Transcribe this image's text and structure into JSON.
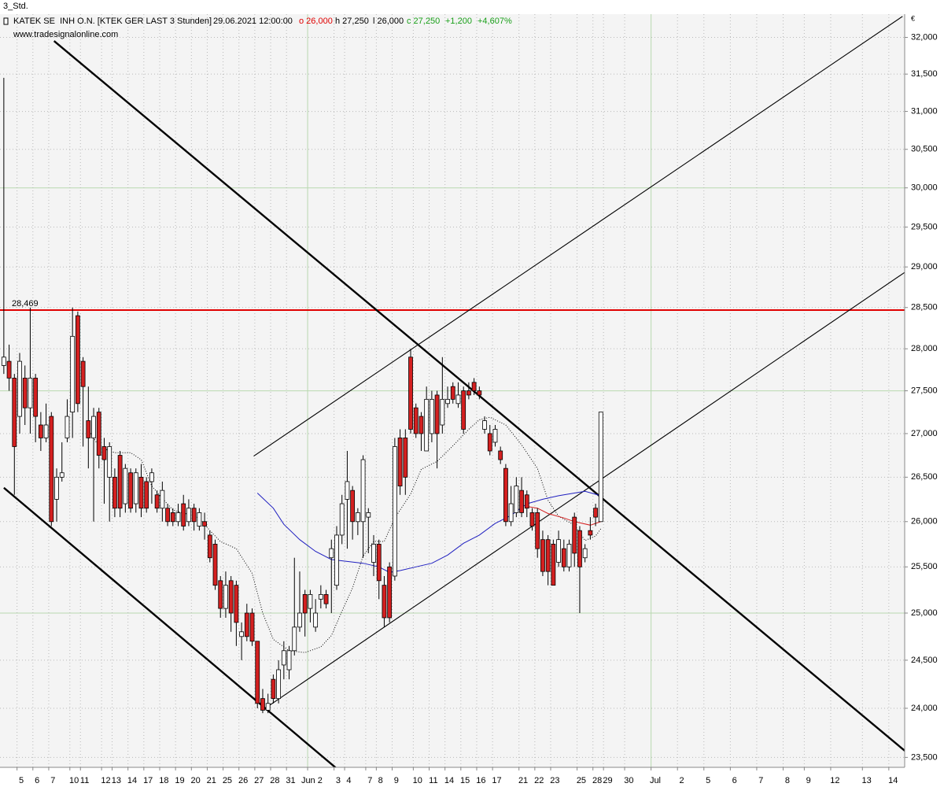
{
  "header": {
    "timeframe": "3_Std.",
    "instrument": "KATEK SE  INH O.N. [KTEK GER LAST 3 Stunden]",
    "datetime": "29.06.2021 12:00:00",
    "open": "o 26,000",
    "high": "h 27,250",
    "low": "l 26,000",
    "close": "c 27,250",
    "change": "+1,200",
    "change_pct": "+4,607%",
    "source": "www.tradesignalonline.com",
    "currency": "€"
  },
  "chart_data": {
    "type": "candlestick",
    "log": true,
    "grid": true,
    "up_color": "#ffffff",
    "down_color": "#d42020",
    "ylim": [
      23400,
      32320
    ],
    "yticks": [
      {
        "value": 23500,
        "label": "23,500"
      },
      {
        "value": 24000,
        "label": "24,000"
      },
      {
        "value": 24500,
        "label": "24,500"
      },
      {
        "value": 25000,
        "label": "25,000"
      },
      {
        "value": 25500,
        "label": "25,500"
      },
      {
        "value": 26000,
        "label": "26,000"
      },
      {
        "value": 26500,
        "label": "26,500"
      },
      {
        "value": 27000,
        "label": "27,000"
      },
      {
        "value": 27500,
        "label": "27,500"
      },
      {
        "value": 28000,
        "label": "28,000"
      },
      {
        "value": 28500,
        "label": "28,500"
      },
      {
        "value": 29000,
        "label": "29,000"
      },
      {
        "value": 29500,
        "label": "29,500"
      },
      {
        "value": 30000,
        "label": "30,000"
      },
      {
        "value": 30500,
        "label": "30,500"
      },
      {
        "value": 31000,
        "label": "31,000"
      },
      {
        "value": 31500,
        "label": "31,500"
      },
      {
        "value": 32000,
        "label": "32,000"
      }
    ],
    "major_yticks": [
      25000,
      27500,
      30000
    ],
    "categories": [
      null,
      null,
      null,
      "5",
      null,
      null,
      "6",
      null,
      null,
      "7",
      null,
      null,
      null,
      "10",
      null,
      "11",
      null,
      null,
      null,
      "12",
      null,
      "13",
      null,
      null,
      "14",
      null,
      null,
      "17",
      null,
      null,
      "18",
      null,
      null,
      "19",
      null,
      null,
      "20",
      null,
      null,
      "21",
      null,
      null,
      "25",
      null,
      null,
      "26",
      null,
      null,
      "27",
      null,
      null,
      "28",
      null,
      null,
      "31",
      null,
      null,
      null,
      "Jun 2",
      null,
      null,
      null,
      null,
      "3",
      null,
      "4",
      null,
      null,
      null,
      "7",
      null,
      "8",
      null,
      null,
      "9",
      null,
      null,
      null,
      "10",
      null,
      null,
      "11",
      null,
      null,
      "14",
      null,
      null,
      "15",
      null,
      null,
      "16",
      null,
      null,
      "17",
      null,
      null,
      null,
      null,
      "21",
      null,
      null,
      "22",
      null,
      null,
      "23",
      null,
      null,
      null,
      null,
      "25",
      null,
      null,
      "28",
      null,
      "29",
      null,
      null,
      null,
      "30",
      null,
      null,
      null,
      null,
      "Jul",
      null,
      null,
      null,
      null,
      "2",
      null,
      null,
      null,
      null,
      "5",
      null,
      null,
      null,
      null,
      "6",
      null,
      null,
      null,
      null,
      "7",
      null,
      null,
      null,
      null,
      "8",
      null,
      null,
      null,
      "9",
      null,
      null,
      null,
      null,
      "12",
      null,
      null,
      null,
      null,
      null,
      "13",
      null,
      null,
      null,
      null,
      "14",
      null,
      null
    ],
    "open": [
      27800,
      27850,
      27650,
      27200,
      27650,
      27300,
      27650,
      27100,
      26950,
      27200,
      26250,
      26500,
      26950,
      27250,
      28400,
      27850,
      27150,
      26950,
      27250,
      26850,
      26500,
      26500,
      26750,
      26200,
      26550,
      26200,
      26500,
      26450,
      26450,
      26300,
      26150,
      26150,
      26100,
      26000,
      26200,
      26000,
      26150,
      25950,
      26000,
      25850,
      25750,
      25350,
      25050,
      25350,
      25300,
      24750,
      25000,
      25000,
      24700,
      24100,
      23980,
      24300,
      24100,
      24450,
      24400,
      24600,
      24850,
      25200,
      25050,
      24850,
      25150,
      25200,
      25600,
      25300,
      25850,
      26250,
      26350,
      26000,
      26000,
      26050,
      25550,
      25750,
      25300,
      25500,
      25400,
      26950,
      26950,
      27900,
      27300,
      27200,
      26800,
      27000,
      27450,
      27100,
      27350,
      27550,
      27350,
      27500,
      27500,
      27600,
      27500,
      27050,
      27000,
      26900,
      26800,
      26600,
      26000,
      26100,
      26350,
      26300,
      26100,
      26100,
      25800,
      25800,
      25750,
      25550,
      25700,
      25500,
      26050,
      25900,
      25600,
      25900,
      26150,
      26000,
      null,
      null,
      null,
      null,
      null,
      null,
      null,
      null,
      null,
      null,
      null,
      null,
      null,
      null,
      null,
      null,
      null,
      null,
      null,
      null,
      null,
      null,
      null,
      null,
      null,
      null,
      null,
      null,
      null,
      null,
      null,
      null,
      null,
      null,
      null,
      null,
      null,
      null,
      null,
      null,
      null,
      null,
      null,
      null,
      null,
      null,
      null,
      null,
      null,
      null,
      null,
      null,
      null,
      null,
      null,
      null,
      null
    ],
    "high": [
      31450,
      28050,
      27700,
      27950,
      27800,
      28500,
      27700,
      27250,
      27350,
      27250,
      26600,
      26900,
      27400,
      28500,
      28450,
      27900,
      27550,
      27300,
      27300,
      26950,
      26900,
      26600,
      26800,
      26650,
      26600,
      26600,
      26650,
      26500,
      26600,
      26350,
      26450,
      26200,
      26150,
      26200,
      26300,
      26250,
      26200,
      26150,
      26100,
      25900,
      25800,
      25400,
      25450,
      25400,
      25350,
      24900,
      25100,
      25050,
      24700,
      24200,
      24150,
      24350,
      24500,
      24700,
      24650,
      25600,
      25450,
      25250,
      25250,
      25150,
      25300,
      25250,
      25800,
      25950,
      26300,
      26800,
      26400,
      26150,
      26750,
      26150,
      25850,
      25800,
      25400,
      25550,
      26950,
      27050,
      27050,
      28000,
      27350,
      27250,
      27550,
      27500,
      27500,
      27900,
      27550,
      27600,
      27600,
      27550,
      27600,
      27650,
      27550,
      27200,
      27100,
      27100,
      26850,
      26650,
      26400,
      26500,
      26500,
      26350,
      26150,
      26150,
      25900,
      25850,
      25800,
      25900,
      25800,
      25800,
      26100,
      25950,
      25750,
      26050,
      26200,
      27250,
      null,
      null,
      null,
      null,
      null,
      null,
      null,
      null,
      null,
      null,
      null,
      null,
      null,
      null,
      null,
      null,
      null,
      null,
      null,
      null,
      null,
      null,
      null,
      null,
      null,
      null,
      null,
      null,
      null,
      null,
      null,
      null,
      null,
      null,
      null,
      null,
      null,
      null,
      null,
      null,
      null,
      null,
      null,
      null,
      null,
      null,
      null,
      null,
      null,
      null,
      null,
      null,
      null,
      null,
      null,
      null,
      null
    ],
    "low": [
      27700,
      27500,
      26300,
      27000,
      27100,
      27000,
      26900,
      26800,
      26900,
      25950,
      26000,
      26450,
      26900,
      26950,
      27250,
      26850,
      26600,
      26000,
      26600,
      26200,
      26000,
      26050,
      26050,
      26100,
      26100,
      26100,
      26050,
      26100,
      26200,
      26100,
      26000,
      25950,
      25950,
      25950,
      25900,
      25950,
      25900,
      25900,
      25800,
      25550,
      25250,
      24950,
      24950,
      24800,
      24650,
      24500,
      24700,
      24650,
      24000,
      23950,
      23950,
      24050,
      24050,
      24300,
      24300,
      24550,
      24800,
      24750,
      24900,
      24800,
      25050,
      25050,
      25000,
      25250,
      25750,
      25700,
      25800,
      25850,
      25600,
      25650,
      25400,
      25150,
      24850,
      24900,
      25350,
      26300,
      26300,
      27000,
      26950,
      26800,
      26800,
      26900,
      26600,
      27000,
      27300,
      27350,
      27300,
      27000,
      27400,
      27450,
      27400,
      27000,
      26750,
      26850,
      26650,
      25950,
      25950,
      26050,
      26050,
      26050,
      25900,
      25600,
      25400,
      25300,
      25300,
      25500,
      25450,
      25450,
      25500,
      25000,
      25550,
      25800,
      25950,
      26000,
      null,
      null,
      null,
      null,
      null,
      null,
      null,
      null,
      null,
      null,
      null,
      null,
      null,
      null,
      null,
      null,
      null,
      null,
      null,
      null,
      null,
      null,
      null,
      null,
      null,
      null,
      null,
      null,
      null,
      null,
      null,
      null,
      null,
      null,
      null,
      null,
      null,
      null,
      null,
      null,
      null,
      null,
      null,
      null,
      null,
      null,
      null,
      null,
      null,
      null,
      null,
      null,
      null,
      null,
      null,
      null,
      null
    ],
    "close": [
      27900,
      27650,
      26850,
      27850,
      27300,
      27650,
      27200,
      26950,
      27100,
      26000,
      26500,
      26550,
      27200,
      28150,
      27350,
      27550,
      26950,
      27200,
      26750,
      26700,
      26850,
      26150,
      26150,
      26600,
      26150,
      26550,
      26150,
      26150,
      26550,
      26150,
      26350,
      26000,
      26000,
      26100,
      25950,
      26150,
      26000,
      26100,
      25950,
      25600,
      25300,
      25050,
      25300,
      25000,
      24900,
      24800,
      24750,
      24700,
      24050,
      23980,
      24050,
      24100,
      24400,
      24600,
      24600,
      24850,
      25000,
      25000,
      25200,
      25000,
      25200,
      25100,
      25700,
      25850,
      26200,
      26450,
      26000,
      26100,
      26700,
      26100,
      25750,
      25350,
      24950,
      24950,
      26850,
      26400,
      26500,
      27050,
      27000,
      27000,
      27400,
      27400,
      27000,
      27400,
      27400,
      27400,
      27450,
      27050,
      27450,
      27500,
      27450,
      27150,
      26800,
      27050,
      26700,
      26000,
      26200,
      26400,
      26100,
      26150,
      25950,
      25700,
      25450,
      25450,
      25300,
      25800,
      25500,
      25750,
      25650,
      25500,
      25700,
      25850,
      26050,
      27250,
      null,
      null,
      null,
      null,
      null,
      null,
      null,
      null,
      null,
      null,
      null,
      null,
      null,
      null,
      null,
      null,
      null,
      null,
      null,
      null,
      null,
      null,
      null,
      null,
      null,
      null,
      null,
      null,
      null,
      null,
      null,
      null,
      null,
      null,
      null,
      null,
      null,
      null,
      null,
      null,
      null,
      null,
      null,
      null,
      null,
      null,
      null,
      null,
      null,
      null,
      null,
      null,
      null,
      null,
      null,
      null,
      null
    ],
    "hline": {
      "value": 28469,
      "label": "28,469",
      "color": "#e00000"
    },
    "lines": [
      {
        "x": [
          9.5,
          170.9
        ],
        "values": [
          31950,
          23550
        ],
        "style": "thick"
      },
      {
        "x": [
          0,
          63.4
        ],
        "values": [
          26380,
          23370
        ],
        "style": "thick"
      },
      {
        "x": [
          47.3,
          170.1
        ],
        "values": [
          26740,
          32290
        ],
        "style": "thin"
      },
      {
        "x": [
          50,
          170.9
        ],
        "values": [
          24020,
          28950
        ],
        "style": "thin"
      }
    ],
    "moving_averages": [
      {
        "color": "#000000",
        "dotted": true,
        "x": [
          16,
          18,
          21,
          24,
          26,
          28,
          30,
          32,
          35,
          37,
          39,
          41,
          44,
          47,
          49,
          51,
          54,
          57,
          60,
          62,
          64,
          66,
          68,
          70,
          72,
          74,
          77,
          79,
          82,
          85,
          88,
          90,
          92,
          95,
          98,
          101,
          103,
          105,
          108,
          110,
          112,
          113
        ],
        "values": [
          27050,
          26850,
          26780,
          26780,
          26700,
          26400,
          26260,
          26130,
          26080,
          26040,
          25900,
          25780,
          25700,
          25430,
          25000,
          24720,
          24600,
          24580,
          24640,
          24760,
          25020,
          25270,
          25620,
          25780,
          25780,
          26040,
          26310,
          26590,
          26680,
          26860,
          27050,
          27160,
          27190,
          27100,
          26870,
          26600,
          26240,
          26060,
          25960,
          25790,
          25840,
          25920
        ]
      },
      {
        "color": "#2020c0",
        "dotted": false,
        "x": [
          48,
          51,
          53,
          56,
          59,
          62,
          65,
          68,
          71,
          73,
          75,
          78,
          81,
          84,
          87,
          90,
          93,
          96,
          99,
          102,
          105,
          108,
          110,
          113
        ],
        "values": [
          26320,
          26150,
          25970,
          25800,
          25670,
          25580,
          25560,
          25540,
          25500,
          25440,
          25460,
          25500,
          25540,
          25630,
          25760,
          25850,
          25980,
          26070,
          26200,
          26250,
          26290,
          26320,
          26340,
          26290
        ]
      },
      {
        "color": "#d42020",
        "dotted": false,
        "x": [
          99,
          101,
          103,
          106,
          108,
          111,
          113
        ],
        "values": [
          26170,
          26150,
          26090,
          26040,
          26000,
          25960,
          26000
        ]
      }
    ]
  }
}
